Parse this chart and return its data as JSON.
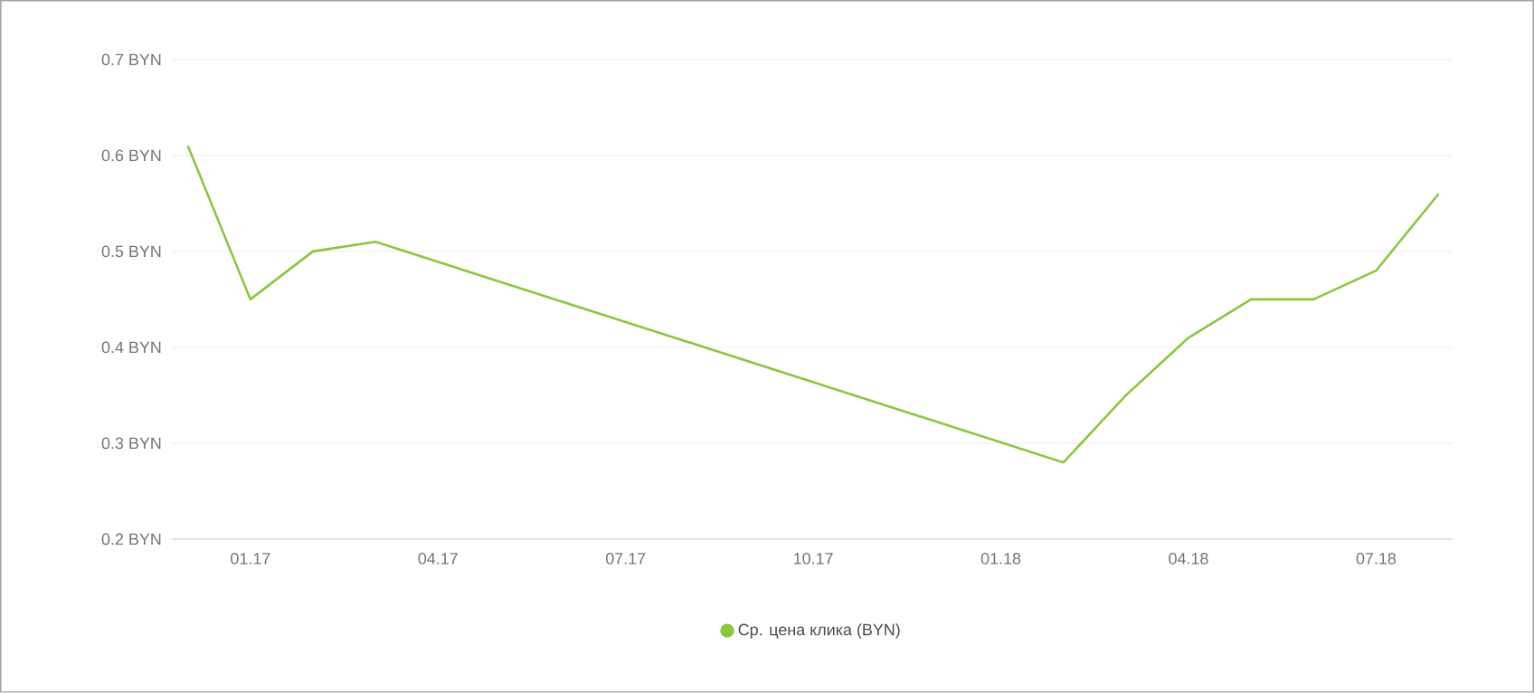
{
  "chart_data": {
    "type": "line",
    "x": [
      "2016-12",
      "2017-01",
      "2017-02",
      "2017-03",
      "2018-02",
      "2018-03",
      "2018-04",
      "2018-05",
      "2018-06",
      "2018-07",
      "2018-08"
    ],
    "series": [
      {
        "name": "Ср. цена клика (BYN)",
        "color": "#8cc63f",
        "values": [
          0.61,
          0.45,
          0.5,
          0.51,
          0.28,
          0.35,
          0.41,
          0.45,
          0.45,
          0.48,
          0.56
        ]
      }
    ],
    "xlim": [
      "2016-11-24",
      "2018-08-08"
    ],
    "xticks": [
      {
        "value": "2017-01",
        "label": "01.17"
      },
      {
        "value": "2017-04",
        "label": "04.17"
      },
      {
        "value": "2017-07",
        "label": "07.17"
      },
      {
        "value": "2017-10",
        "label": "10.17"
      },
      {
        "value": "2018-01",
        "label": "01.18"
      },
      {
        "value": "2018-04",
        "label": "04.18"
      },
      {
        "value": "2018-07",
        "label": "07.18"
      }
    ],
    "ylim": [
      0.2,
      0.7
    ],
    "yticks": [
      {
        "value": 0.2,
        "label": "0.2 BYN"
      },
      {
        "value": 0.3,
        "label": "0.3 BYN"
      },
      {
        "value": 0.4,
        "label": "0.4 BYN"
      },
      {
        "value": 0.5,
        "label": "0.5 BYN"
      },
      {
        "value": 0.6,
        "label": "0.6 BYN"
      },
      {
        "value": 0.7,
        "label": "0.7 BYN"
      }
    ],
    "grid": "y",
    "legend": "bottom",
    "marker": "none",
    "line_style": "solid"
  }
}
